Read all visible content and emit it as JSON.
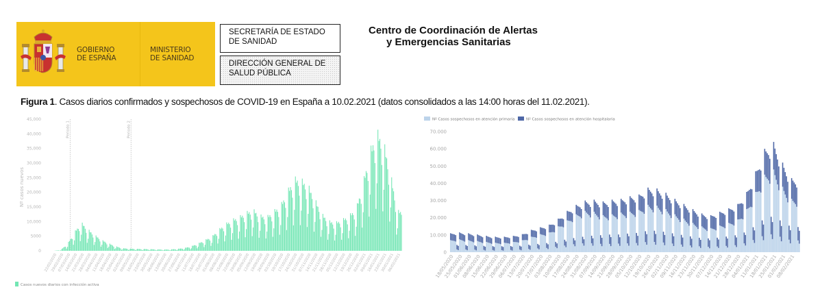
{
  "header": {
    "logo_gobierno": "GOBIERNO\nDE ESPAÑA",
    "logo_ministerio": "MINISTERIO\nDE SANIDAD",
    "box_secretaria": "SECRETARÍA DE ESTADO\nDE SANIDAD",
    "box_direccion": "DIRECCIÓN GENERAL DE\nSALUD PÚBLICA",
    "center_line1": "Centro de Coordinación de Alertas",
    "center_line2": "y Emergencias Sanitarias"
  },
  "caption": {
    "label": "Figura 1",
    "text": ". Casos diarios confirmados y sospechosos de COVID-19 en España a 10.02.2021 (datos consolidados a las 14:00 horas del 11.02.2021)."
  },
  "colors": {
    "logo_yellow": "#f4c51b",
    "confirmed_green": "#73e6b4",
    "primary_light_blue": "#bcd3ea",
    "hospital_dark_blue": "#4e67a6"
  },
  "chart_data": [
    {
      "type": "bar",
      "title": "",
      "ylabel": "Nº casos nuevos",
      "xlabel": "",
      "ylim": [
        0,
        45000
      ],
      "yticks": [
        "0",
        "5000",
        "10,000",
        "15,000",
        "20,000",
        "25,000",
        "30,000",
        "35,000",
        "40,000",
        "45,000"
      ],
      "ytick_values": [
        0,
        5000,
        10000,
        15000,
        20000,
        25000,
        30000,
        35000,
        40000,
        45000
      ],
      "grid": false,
      "legend": {
        "position": "bottom-left",
        "entries": [
          "Casos nuevos diarios con infección activa"
        ]
      },
      "annotations": [
        {
          "label": "Periodo 1",
          "x": "10/03/2020"
        },
        {
          "label": "Periodo 2",
          "x": "11/05/2020"
        }
      ],
      "xticks": [
        "22/02/2020",
        "29/02/2020",
        "07/03/2020",
        "14/03/2020",
        "21/03/2020",
        "28/03/2020",
        "04/04/2020",
        "11/04/2020",
        "18/04/2020",
        "25/04/2020",
        "02/05/2020",
        "09/05/2020",
        "16/05/2020",
        "23/05/2020",
        "30/05/2020",
        "06/06/2020",
        "13/06/2020",
        "20/06/2020",
        "27/06/2020",
        "04/07/2020",
        "11/07/2020",
        "18/07/2020",
        "25/07/2020",
        "01/08/2020",
        "08/08/2020",
        "15/08/2020",
        "22/08/2020",
        "29/08/2020",
        "05/09/2020",
        "12/09/2020",
        "19/09/2020",
        "26/09/2020",
        "03/10/2020",
        "10/10/2020",
        "17/10/2020",
        "24/10/2020",
        "31/10/2020",
        "07/11/2020",
        "14/11/2020",
        "21/11/2020",
        "28/11/2020",
        "05/12/2020",
        "12/12/2020",
        "19/12/2020",
        "26/12/2020",
        "02/01/2021",
        "09/01/2021",
        "16/01/2021",
        "23/01/2021",
        "30/01/2021",
        "06/02/2021"
      ],
      "series": [
        {
          "name": "Casos nuevos diarios con infección activa",
          "weekly_peak_values": [
            0,
            300,
            2500,
            6500,
            10000,
            7500,
            5500,
            3800,
            2600,
            1600,
            900,
            800,
            700,
            650,
            600,
            500,
            450,
            500,
            700,
            1000,
            1600,
            2600,
            3800,
            5000,
            7500,
            9500,
            11000,
            12000,
            13500,
            14500,
            12500,
            12000,
            14000,
            16000,
            21000,
            25500,
            25000,
            23000,
            18000,
            13000,
            10500,
            10000,
            11000,
            12500,
            15000,
            24000,
            35000,
            42000,
            38000,
            27000,
            14000
          ]
        }
      ]
    },
    {
      "type": "bar",
      "stacked": true,
      "title": "",
      "ylabel": "",
      "xlabel": "",
      "ylim": [
        0,
        70000
      ],
      "yticks": [
        "0",
        "10.000",
        "20.000",
        "30.000",
        "40.000",
        "50.000",
        "60.000",
        "70.000"
      ],
      "ytick_values": [
        0,
        10000,
        20000,
        30000,
        40000,
        50000,
        60000,
        70000
      ],
      "grid": false,
      "legend": {
        "position": "top-left",
        "entries": [
          "Nº Casos sospechosos en atención primaria",
          "Nº Casos sospechosos en atención hospitalaria"
        ]
      },
      "xticks": [
        "18/05/2020",
        "25/05/2020",
        "01/06/2020",
        "08/06/2020",
        "15/06/2020",
        "22/06/2020",
        "29/06/2020",
        "06/07/2020",
        "13/07/2020",
        "20/07/2020",
        "27/07/2020",
        "03/08/2020",
        "10/08/2020",
        "17/08/2020",
        "24/08/2020",
        "31/08/2020",
        "07/09/2020",
        "14/09/2020",
        "21/09/2020",
        "28/09/2020",
        "05/10/2020",
        "12/10/2020",
        "19/10/2020",
        "26/10/2020",
        "02/11/2020",
        "09/11/2020",
        "16/11/2020",
        "23/11/2020",
        "30/11/2020",
        "07/12/2020",
        "14/12/2020",
        "21/12/2020",
        "28/12/2020",
        "04/01/2021",
        "11/01/2021",
        "18/01/2021",
        "25/01/2021",
        "01/02/2021",
        "08/02/2021"
      ],
      "series": [
        {
          "name": "Nº Casos sospechosos en atención primaria",
          "weekly_values": [
            7000,
            7500,
            7000,
            6500,
            6000,
            5500,
            5500,
            6000,
            7000,
            9000,
            10500,
            11500,
            15000,
            18500,
            22000,
            24000,
            23500,
            21500,
            22000,
            23000,
            23500,
            24500,
            27500,
            27000,
            25000,
            22000,
            19500,
            17000,
            15000,
            14000,
            15500,
            17000,
            19000,
            25000,
            35000,
            45000,
            48000,
            38000,
            31000
          ]
        },
        {
          "name": "Nº Casos sospechosos en atención hospitalaria",
          "weekly_values": [
            4000,
            4000,
            4000,
            3800,
            3500,
            3500,
            3500,
            3500,
            3500,
            4000,
            4000,
            4500,
            4500,
            5500,
            5500,
            6000,
            7000,
            8000,
            8500,
            8000,
            9000,
            9000,
            10000,
            10000,
            9500,
            9000,
            8500,
            8000,
            7500,
            7500,
            8000,
            8500,
            9000,
            10000,
            12000,
            15000,
            16000,
            14000,
            12000
          ]
        }
      ]
    }
  ]
}
